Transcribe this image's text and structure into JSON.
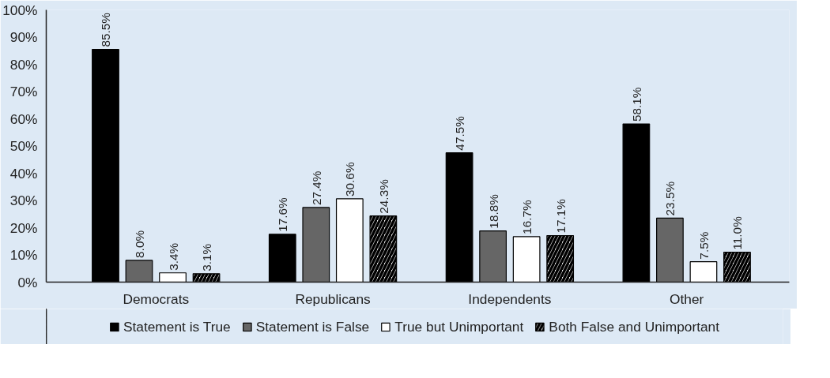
{
  "chart_data": {
    "type": "bar",
    "categories": [
      "Democrats",
      "Republicans",
      "Independents",
      "Other"
    ],
    "series": [
      {
        "name": "Statement is True",
        "color": "#000000",
        "values": [
          85.5,
          17.6,
          47.5,
          58.1
        ],
        "value_labels": [
          "85.5%",
          "17.6%",
          "47.5%",
          "58.1%"
        ]
      },
      {
        "name": "Statement is False",
        "color": "#666666",
        "values": [
          8.0,
          27.4,
          18.8,
          23.5
        ],
        "value_labels": [
          "8.0%",
          "27.4%",
          "18.8%",
          "23.5%"
        ]
      },
      {
        "name": "True but Unimportant",
        "color": "#ffffff",
        "values": [
          3.4,
          30.6,
          16.7,
          7.5
        ],
        "value_labels": [
          "3.4%",
          "30.6%",
          "16.7%",
          "7.5%"
        ]
      },
      {
        "name": "Both False and Unimportant",
        "color": "#ffffff",
        "values": [
          3.1,
          24.3,
          17.1,
          11.0
        ],
        "value_labels": [
          "3.1%",
          "24.3%",
          "17.1%",
          "11.0%"
        ]
      }
    ],
    "ylim": [
      0,
      100
    ],
    "yticks": [
      {
        "value": 0,
        "label": "0%"
      },
      {
        "value": 10,
        "label": "10%"
      },
      {
        "value": 20,
        "label": "20%"
      },
      {
        "value": 30,
        "label": "30%"
      },
      {
        "value": 40,
        "label": "40%"
      },
      {
        "value": 50,
        "label": "50%"
      },
      {
        "value": 60,
        "label": "60%"
      },
      {
        "value": 70,
        "label": "70%"
      },
      {
        "value": 80,
        "label": "80%"
      },
      {
        "value": 90,
        "label": "90%"
      },
      {
        "value": 100,
        "label": "100%"
      }
    ],
    "legend": "bottom"
  }
}
